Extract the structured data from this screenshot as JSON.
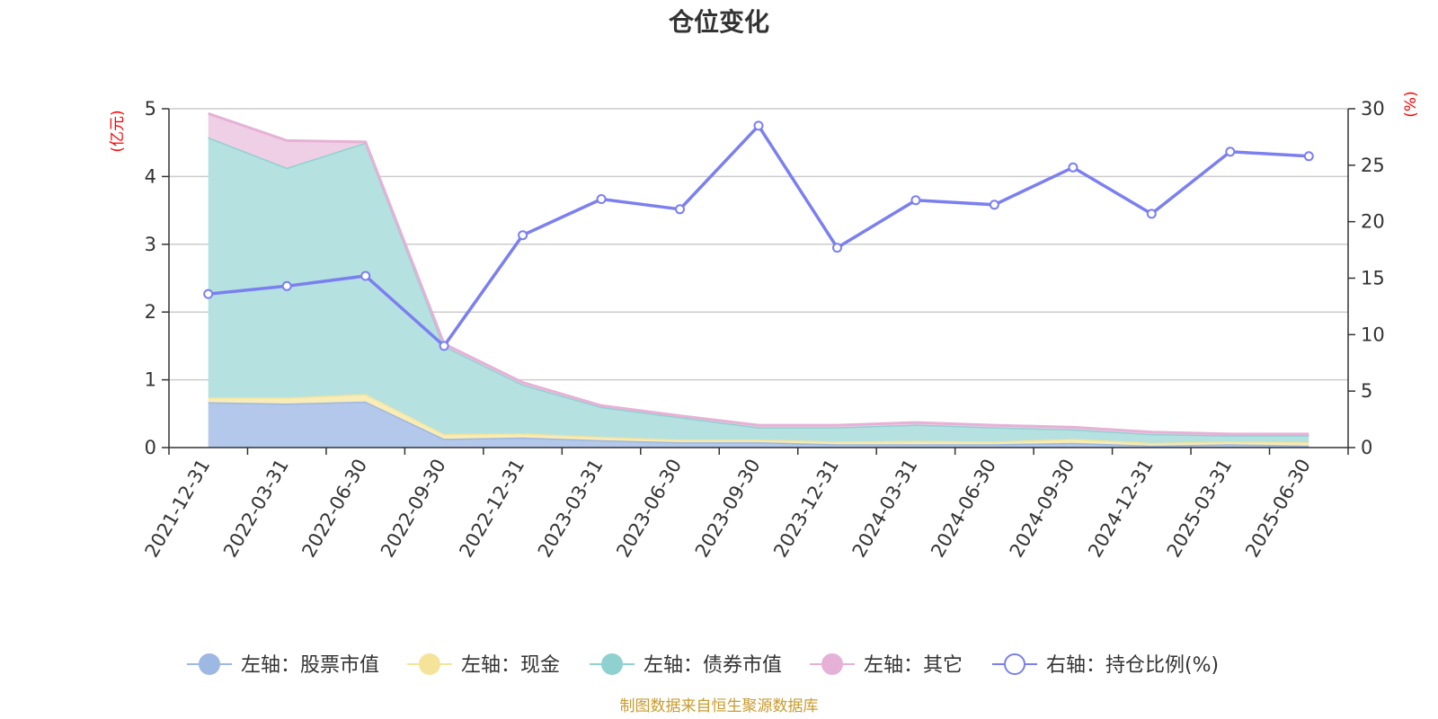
{
  "chart_data": {
    "type": "area",
    "title": "仓位变化",
    "source_note": "制图数据来自恒生聚源数据库",
    "left_axis": {
      "unit": "(亿元)",
      "ylim": [
        0,
        5
      ],
      "ticks": [
        "0",
        "1",
        "2",
        "3",
        "4",
        "5"
      ]
    },
    "right_axis": {
      "unit": "(%)",
      "ylim": [
        0,
        30
      ],
      "ticks": [
        "0",
        "5",
        "10",
        "15",
        "20",
        "25",
        "30"
      ]
    },
    "categories": [
      "2021-12-31",
      "2022-03-31",
      "2022-06-30",
      "2022-09-30",
      "2022-12-31",
      "2023-03-31",
      "2023-06-30",
      "2023-09-30",
      "2023-12-31",
      "2024-03-31",
      "2024-06-30",
      "2024-09-30",
      "2024-12-31",
      "2025-03-31",
      "2025-06-30"
    ],
    "stacked_series": [
      {
        "name": "左轴：股票市值",
        "color": "#9db8e2",
        "fill": "#b3c8ea",
        "values": [
          0.67,
          0.65,
          0.68,
          0.13,
          0.15,
          0.11,
          0.08,
          0.08,
          0.05,
          0.05,
          0.05,
          0.07,
          0.03,
          0.05,
          0.03
        ]
      },
      {
        "name": "左轴：现金",
        "color": "#f5e39a",
        "fill": "#f8ecb8",
        "values": [
          0.07,
          0.09,
          0.11,
          0.07,
          0.06,
          0.05,
          0.04,
          0.04,
          0.04,
          0.05,
          0.04,
          0.06,
          0.04,
          0.04,
          0.05
        ]
      },
      {
        "name": "左轴：债券市值",
        "color": "#8fd1d1",
        "fill": "#b5e1e1",
        "values": [
          3.84,
          3.39,
          3.71,
          1.3,
          0.72,
          0.44,
          0.33,
          0.18,
          0.21,
          0.24,
          0.21,
          0.14,
          0.13,
          0.09,
          0.1
        ]
      },
      {
        "name": "左轴：其它",
        "color": "#e6b1d6",
        "fill": "#eecfe5",
        "values": [
          0.35,
          0.4,
          0.01,
          0.03,
          0.03,
          0.02,
          0.02,
          0.03,
          0.03,
          0.03,
          0.03,
          0.03,
          0.03,
          0.02,
          0.02
        ]
      }
    ],
    "line_series": {
      "name": "右轴：持仓比例(%)",
      "color": "#7b7ff0",
      "axis": "right",
      "values": [
        13.6,
        14.3,
        15.2,
        9.0,
        18.8,
        22.0,
        21.1,
        28.5,
        17.7,
        21.9,
        21.5,
        24.8,
        20.7,
        26.2,
        25.8
      ]
    },
    "grid": true,
    "legend": "bottom-center"
  }
}
